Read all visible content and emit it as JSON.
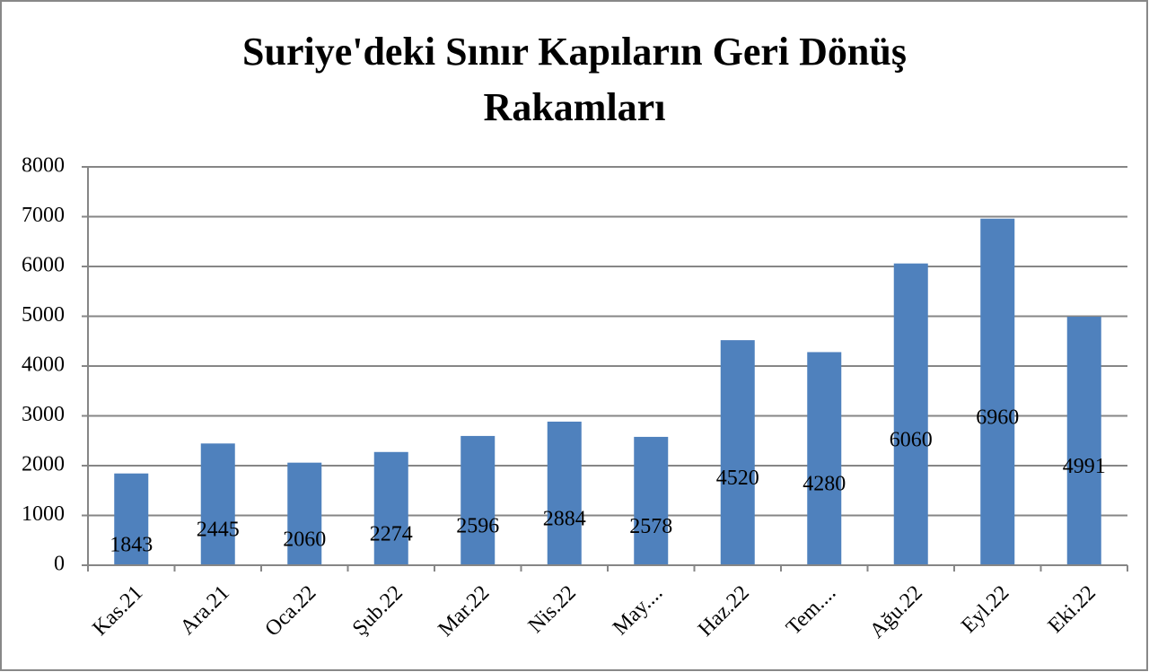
{
  "chart_data": {
    "type": "bar",
    "title": "Suriye'deki Sınır Kapıların Geri Dönüş Rakamları",
    "categories": [
      "Kas.21",
      "Ara.21",
      "Oca.22",
      "Şub.22",
      "Mar.22",
      "Nis.22",
      "May....",
      "Haz.22",
      "Tem....",
      "Ağu.22",
      "Eyl.22",
      "Eki.22"
    ],
    "values": [
      1843,
      2445,
      2060,
      2274,
      2596,
      2884,
      2578,
      4520,
      4280,
      6060,
      6960,
      4991
    ],
    "color": "#4f81bd",
    "ylim": [
      0,
      8000
    ],
    "yticks": [
      0,
      1000,
      2000,
      3000,
      4000,
      5000,
      6000,
      7000,
      8000
    ],
    "grid": true
  }
}
